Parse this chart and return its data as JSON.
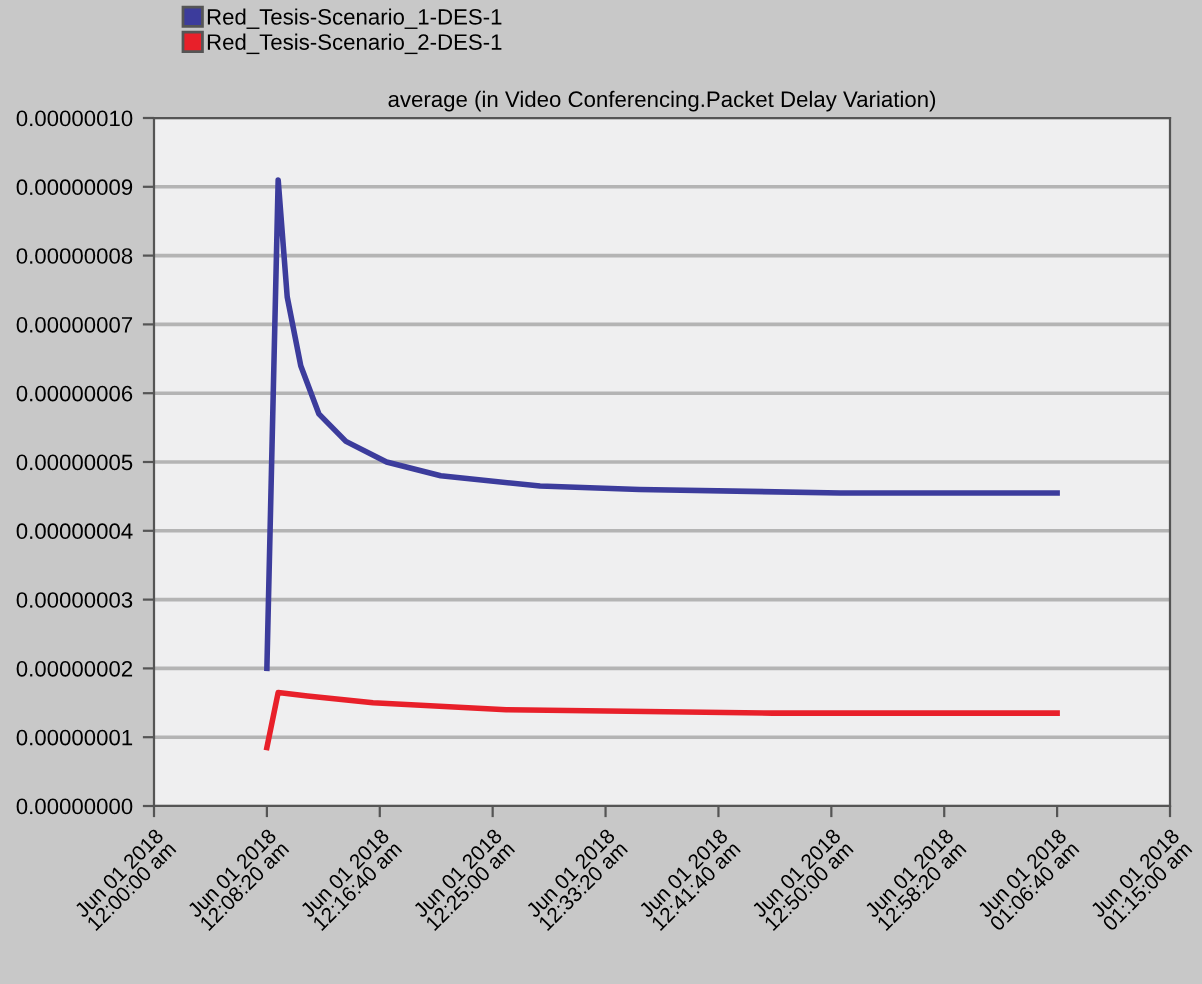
{
  "chart_data": {
    "type": "line",
    "title": "average (in Video Conferencing.Packet Delay Variation)",
    "series": [
      {
        "name": "Red_Tesis-Scenario_1-DES-1",
        "color": "#3c3c9c",
        "x": [
          "2018-06-01T00:08:20",
          "2018-06-01T00:09:10",
          "2018-06-01T00:09:50",
          "2018-06-01T00:10:50",
          "2018-06-01T00:12:10",
          "2018-06-01T00:14:10",
          "2018-06-01T00:17:10",
          "2018-06-01T00:21:10",
          "2018-06-01T00:28:30",
          "2018-06-01T00:35:50",
          "2018-06-01T00:50:40",
          "2018-06-01T01:06:40"
        ],
        "values": [
          2e-08,
          9.1e-08,
          7.4e-08,
          6.4e-08,
          5.7e-08,
          5.3e-08,
          5e-08,
          4.8e-08,
          4.65e-08,
          4.6e-08,
          4.55e-08,
          4.55e-08
        ]
      },
      {
        "name": "Red_Tesis-Scenario_2-DES-1",
        "color": "#e8202a",
        "x": [
          "2018-06-01T00:08:20",
          "2018-06-01T00:09:10",
          "2018-06-01T00:11:20",
          "2018-06-01T00:16:10",
          "2018-06-01T00:26:00",
          "2018-06-01T00:45:40",
          "2018-06-01T01:06:40"
        ],
        "values": [
          8.5e-09,
          1.65e-08,
          1.6e-08,
          1.5e-08,
          1.4e-08,
          1.35e-08,
          1.35e-08
        ]
      }
    ],
    "xlim": [
      "2018-06-01T00:00:00",
      "2018-06-01T01:15:00"
    ],
    "xticks": [
      {
        "value": "2018-06-01T00:00:00",
        "label": "Jun 01 2018\n12:00:00 am"
      },
      {
        "value": "2018-06-01T00:08:20",
        "label": "Jun 01 2018\n12:08:20 am"
      },
      {
        "value": "2018-06-01T00:16:40",
        "label": "Jun 01 2018\n12:16:40 am"
      },
      {
        "value": "2018-06-01T00:25:00",
        "label": "Jun 01 2018\n12:25:00 am"
      },
      {
        "value": "2018-06-01T00:33:20",
        "label": "Jun 01 2018\n12:33:20 am"
      },
      {
        "value": "2018-06-01T00:41:40",
        "label": "Jun 01 2018\n12:41:40 am"
      },
      {
        "value": "2018-06-01T00:50:00",
        "label": "Jun 01 2018\n12:50:00 am"
      },
      {
        "value": "2018-06-01T00:58:20",
        "label": "Jun 01 2018\n12:58:20 am"
      },
      {
        "value": "2018-06-01T01:06:40",
        "label": "Jun 01 2018\n01:06:40 am"
      },
      {
        "value": "2018-06-01T01:15:00",
        "label": "Jun 01 2018\n01:15:00 am"
      }
    ],
    "ylim": [
      0,
      1e-07
    ],
    "yticks": [
      {
        "value": 0,
        "label": "0.00000000"
      },
      {
        "value": 1e-08,
        "label": "0.00000001"
      },
      {
        "value": 2e-08,
        "label": "0.00000002"
      },
      {
        "value": 3e-08,
        "label": "0.00000003"
      },
      {
        "value": 4e-08,
        "label": "0.00000004"
      },
      {
        "value": 5e-08,
        "label": "0.00000005"
      },
      {
        "value": 6e-08,
        "label": "0.00000006"
      },
      {
        "value": 7e-08,
        "label": "0.00000007"
      },
      {
        "value": 8e-08,
        "label": "0.00000008"
      },
      {
        "value": 9e-08,
        "label": "0.00000009"
      },
      {
        "value": 1e-07,
        "label": "0.00000010"
      }
    ],
    "grid": "y",
    "legend": "top left",
    "marker": "none",
    "line_style": "solid"
  }
}
